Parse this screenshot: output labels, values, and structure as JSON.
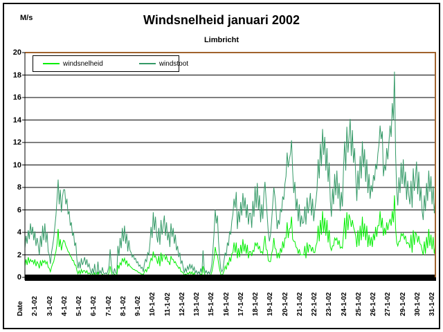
{
  "window": {
    "background": "#ffffff",
    "border_color": "#000000"
  },
  "header": {
    "unit_label": "M/s",
    "title": "Windsnelheid januari 2002",
    "subtitle": "Limbricht"
  },
  "legend": {
    "items": [
      {
        "label": "windsnelheid",
        "color": "#00ee00"
      },
      {
        "label": "windstoot",
        "color": "#339966"
      }
    ]
  },
  "colors": {
    "windsnelheid": "#00ee00",
    "windstoot": "#339966",
    "plot_border_top_right": "#a0622c",
    "gridline": "#000000",
    "baseline_bar": "#000000"
  },
  "chart_data": {
    "type": "line",
    "title": "Windsnelheid januari 2002",
    "subtitle": "Limbricht",
    "ylabel": "M/s",
    "xlabel": "Date",
    "ylim": [
      0,
      20
    ],
    "yticks": [
      0,
      2,
      4,
      6,
      8,
      10,
      12,
      14,
      16,
      18,
      20
    ],
    "grid": "horizontal",
    "legend_position": "top-left inside plot area",
    "x_tick_labels": [
      "Date",
      "2-1-02",
      "3-1-02",
      "4-1-02",
      "5-1-02",
      "6-1-02",
      "7-1-02",
      "8-1-02",
      "9-1-02",
      "10-1-02",
      "11-1-02",
      "12-1-02",
      "13-1-02",
      "15-1-02",
      "16-1-02",
      "17-1-02",
      "18-1-02",
      "19-1-02",
      "20-1-02",
      "21-1-02",
      "22-1-02",
      "23-1-02",
      "24-1-02",
      "25-1-02",
      "26-1-02",
      "27-1-02",
      "29-1-02",
      "30-1-02",
      "31-1-02"
    ],
    "sampling_note": "High-frequency wind data for 31 days of January 2002; values estimated from plot at 12 samples per day, in m/s",
    "series": [
      {
        "name": "windstoot",
        "color": "#339966",
        "values": [
          2.6,
          3.7,
          3.0,
          4.2,
          3.4,
          4.8,
          3.8,
          4.5,
          3.3,
          4.1,
          2.8,
          3.5,
          2.9,
          2.0,
          3.7,
          2.7,
          4.6,
          3.3,
          4.8,
          3.1,
          4.0,
          2.3,
          2.0,
          1.2,
          2.2,
          2.8,
          3.5,
          4.5,
          5.5,
          7.0,
          8.7,
          6.5,
          7.8,
          5.8,
          7.2,
          7.8,
          7.8,
          6.5,
          7.0,
          5.6,
          5.9,
          4.6,
          4.9,
          3.7,
          4.0,
          2.8,
          3.1,
          1.6,
          0.8,
          1.4,
          0.8,
          1.7,
          1.1,
          1.4,
          1.8,
          1.1,
          1.6,
          0.9,
          1.2,
          0.7,
          0.3,
          0.8,
          0.3,
          1.2,
          0.4,
          0.3,
          1.4,
          0.3,
          0.6,
          0.3,
          0.9,
          0.4,
          0.3,
          0.4,
          0.3,
          0.6,
          1.0,
          2.5,
          1.2,
          0.5,
          0.3,
          0.8,
          0.4,
          0.3,
          2.8,
          1.9,
          3.5,
          2.6,
          4.4,
          3.2,
          4.6,
          3.0,
          3.9,
          2.3,
          3.3,
          2.4,
          2.2,
          1.8,
          2.0,
          1.6,
          1.7,
          1.3,
          1.4,
          1.0,
          1.1,
          0.8,
          0.9,
          0.5,
          1.2,
          1.6,
          1.4,
          2.2,
          2.0,
          3.0,
          4.5,
          3.5,
          5.8,
          4.2,
          5.4,
          3.8,
          3.1,
          4.4,
          2.9,
          5.1,
          3.8,
          4.6,
          5.5,
          3.7,
          4.9,
          3.3,
          4.0,
          2.7,
          4.8,
          3.6,
          4.4,
          3.0,
          3.8,
          2.4,
          2.8,
          1.8,
          2.2,
          1.2,
          1.5,
          0.9,
          0.4,
          0.8,
          0.5,
          1.0,
          0.7,
          1.2,
          0.8,
          1.1,
          0.6,
          0.9,
          0.4,
          0.6,
          0.3,
          0.5,
          0.3,
          0.8,
          0.4,
          2.4,
          0.9,
          0.4,
          0.6,
          0.3,
          0.5,
          0.3,
          0.6,
          1.2,
          2.5,
          4.0,
          6.0,
          4.8,
          5.5,
          3.2,
          1.8,
          0.8,
          0.5,
          0.7,
          1.5,
          2.2,
          1.9,
          3.1,
          2.8,
          4.1,
          3.8,
          5.0,
          5.6,
          7.0,
          6.2,
          7.6,
          4.3,
          5.9,
          4.9,
          6.7,
          5.5,
          7.5,
          6.1,
          7.1,
          5.3,
          6.5,
          4.7,
          5.7,
          5.7,
          4.4,
          6.8,
          5.4,
          8.1,
          6.2,
          8.4,
          6.0,
          7.3,
          4.9,
          6.5,
          5.2,
          7.5,
          8.5,
          7.0,
          5.5,
          4.0,
          3.2,
          3.8,
          5.0,
          6.5,
          8.0,
          7.2,
          6.0,
          4.3,
          5.1,
          4.7,
          6.1,
          5.8,
          7.2,
          6.9,
          8.3,
          9.0,
          11.1,
          9.8,
          10.5,
          11.0,
          12.2,
          9.5,
          7.5,
          8.5,
          6.0,
          7.0,
          5.0,
          6.5,
          4.5,
          5.5,
          4.8,
          4.9,
          6.3,
          4.7,
          7.1,
          5.7,
          6.5,
          7.5,
          5.5,
          7.0,
          5.0,
          6.0,
          6.8,
          7.8,
          10.5,
          8.8,
          11.9,
          9.9,
          13.2,
          10.9,
          12.5,
          9.5,
          11.5,
          8.5,
          10.2,
          6.8,
          5.4,
          7.9,
          6.5,
          9.2,
          7.3,
          9.5,
          7.0,
          8.4,
          5.9,
          7.6,
          6.3,
          9.8,
          12.1,
          9.5,
          13.4,
          11.1,
          12.5,
          14.1,
          10.8,
          13.1,
          10.2,
          11.5,
          9.1,
          6.8,
          9.5,
          7.8,
          10.8,
          8.8,
          12.1,
          9.8,
          11.4,
          8.5,
          10.5,
          7.5,
          9.2,
          7.0,
          8.2,
          7.6,
          9.1,
          8.6,
          10.1,
          9.6,
          11.0,
          11.8,
          13.5,
          12.3,
          13.0,
          9.0,
          10.0,
          9.5,
          11.5,
          10.5,
          12.0,
          13.5,
          12.5,
          15.5,
          14.0,
          18.3,
          11.0,
          7.8,
          6.4,
          8.9,
          7.5,
          10.2,
          8.3,
          10.5,
          8.0,
          9.4,
          6.9,
          8.6,
          7.3,
          6.5,
          8.6,
          6.2,
          9.7,
          7.7,
          8.9,
          10.3,
          7.4,
          9.4,
          6.8,
          8.0,
          5.9,
          5.1,
          7.3,
          5.9,
          8.4,
          6.8,
          9.5,
          7.6,
          9.0,
          6.5,
          8.1,
          5.7,
          7.1
        ]
      },
      {
        "name": "windsnelheid",
        "color": "#00ee00",
        "values": [
          1.0,
          1.6,
          1.1,
          1.8,
          1.3,
          1.6,
          1.4,
          1.5,
          1.2,
          1.6,
          1.0,
          1.4,
          1.2,
          0.8,
          1.5,
          1.0,
          1.5,
          1.3,
          1.5,
          1.2,
          1.4,
          0.9,
          0.8,
          0.5,
          0.9,
          1.2,
          1.4,
          1.9,
          2.3,
          3.0,
          4.3,
          2.7,
          3.4,
          2.4,
          3.0,
          3.3,
          3.2,
          2.8,
          2.6,
          2.3,
          2.2,
          1.9,
          1.8,
          1.5,
          1.5,
          1.1,
          1.1,
          0.6,
          0.3,
          0.6,
          0.3,
          0.7,
          0.4,
          0.6,
          0.6,
          0.4,
          0.6,
          0.3,
          0.4,
          0.3,
          0.1,
          0.3,
          0.1,
          0.4,
          0.2,
          0.1,
          0.5,
          0.1,
          0.2,
          0.1,
          0.3,
          0.2,
          0.1,
          0.2,
          0.1,
          0.2,
          0.4,
          1.0,
          0.5,
          0.2,
          0.1,
          0.3,
          0.2,
          0.1,
          1.1,
          0.8,
          1.3,
          1.1,
          1.7,
          1.4,
          1.7,
          1.2,
          1.5,
          1.0,
          1.2,
          1.0,
          0.9,
          0.8,
          0.7,
          0.7,
          0.6,
          0.6,
          0.5,
          0.4,
          0.4,
          0.3,
          0.3,
          0.2,
          0.5,
          0.7,
          0.5,
          0.9,
          0.8,
          1.3,
          1.7,
          1.5,
          2.3,
          1.8,
          1.9,
          1.6,
          1.2,
          1.9,
          1.0,
          2.2,
          1.4,
          2.0,
          2.0,
          1.6,
          1.9,
          1.4,
          1.4,
          1.1,
          1.9,
          1.6,
          1.6,
          1.3,
          1.4,
          1.1,
          1.0,
          0.8,
          0.9,
          0.5,
          0.5,
          0.4,
          0.2,
          0.3,
          0.2,
          0.4,
          0.3,
          0.5,
          0.3,
          0.5,
          0.2,
          0.4,
          0.1,
          0.2,
          0.1,
          0.2,
          0.1,
          0.3,
          0.2,
          1.0,
          0.4,
          0.2,
          0.2,
          0.1,
          0.2,
          0.1,
          0.2,
          0.5,
          1.0,
          1.7,
          2.7,
          2.1,
          2.0,
          1.3,
          0.7,
          0.3,
          0.2,
          0.3,
          0.6,
          1.0,
          0.7,
          1.3,
          1.1,
          1.8,
          1.4,
          2.1,
          2.2,
          3.1,
          2.2,
          3.1,
          1.7,
          2.6,
          1.8,
          2.9,
          2.1,
          3.4,
          2.3,
          3.0,
          2.1,
          2.9,
          1.7,
          2.3,
          2.3,
          1.9,
          2.4,
          2.3,
          3.1,
          2.8,
          3.1,
          2.5,
          2.8,
          2.2,
          2.3,
          2.1,
          3.0,
          3.7,
          2.5,
          2.4,
          1.5,
          1.4,
          1.4,
          2.1,
          2.5,
          3.5,
          2.6,
          2.5,
          1.7,
          2.2,
          1.7,
          2.6,
          2.2,
          3.2,
          2.6,
          3.5,
          3.5,
          4.9,
          3.5,
          4.3,
          4.4,
          5.4,
          3.4,
          3.2,
          3.2,
          2.7,
          2.6,
          2.1,
          2.5,
          2.0,
          2.0,
          2.0,
          2.0,
          2.8,
          1.7,
          3.1,
          2.2,
          2.9,
          2.8,
          2.3,
          2.7,
          2.2,
          2.2,
          2.8,
          3.1,
          4.6,
          3.2,
          5.1,
          3.8,
          5.9,
          4.0,
          5.3,
          3.7,
          5.1,
          3.1,
          4.2,
          2.7,
          2.4,
          2.8,
          2.8,
          3.5,
          3.3,
          3.5,
          2.9,
          3.3,
          2.6,
          2.7,
          2.6,
          3.9,
          5.3,
          3.4,
          5.8,
          4.2,
          5.6,
          5.2,
          4.5,
          5.1,
          4.5,
          4.1,
          3.7,
          2.7,
          4.2,
          2.8,
          4.6,
          3.3,
          5.4,
          3.6,
          4.8,
          3.3,
          4.6,
          2.7,
          3.8,
          2.8,
          3.6,
          2.7,
          3.9,
          3.3,
          4.5,
          3.6,
          4.6,
          4.6,
          5.9,
          4.4,
          5.3,
          3.7,
          4.4,
          3.8,
          4.9,
          4.2,
          4.8,
          5.2,
          4.6,
          5.9,
          4.9,
          7.3,
          4.4,
          3.1,
          2.8,
          3.2,
          3.2,
          3.9,
          3.7,
          3.9,
          3.4,
          3.7,
          3.0,
          3.1,
          3.0,
          2.6,
          3.8,
          2.2,
          4.2,
          2.9,
          4.0,
          3.8,
          3.1,
          3.7,
          3.0,
          2.9,
          2.4,
          2.0,
          3.2,
          2.1,
          3.6,
          2.6,
          4.3,
          2.8,
          3.8,
          2.5,
          3.6,
          2.1,
          2.9
        ]
      }
    ]
  }
}
